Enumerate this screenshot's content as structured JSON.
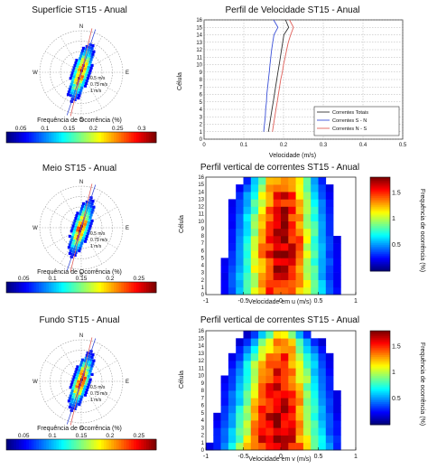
{
  "colors": {
    "ink": "#111111",
    "grid": "#9a9a9a",
    "total_line": "#333333",
    "sn_line": "#3b50d8",
    "ew_line": "#e0605a"
  },
  "compass": {
    "n": "N",
    "e": "E",
    "s": "S",
    "w": "W"
  },
  "roses": [
    {
      "title": "Superfície ST15 - Anual",
      "ring_labels": [
        "0.5 m/s",
        "0.75 m/s",
        "1 m/s"
      ],
      "xlabel": "Frequência de Ocorrência (%)",
      "colorbar": {
        "ticks": [
          "0.05",
          "0.1",
          "0.15",
          "0.2",
          "0.25",
          "0.3"
        ],
        "min": 0.02,
        "max": 0.33
      }
    },
    {
      "title": "Meio ST15 - Anual",
      "ring_labels": [
        "0.5 m/s",
        "0.75 m/s",
        "1 m/s"
      ],
      "xlabel": "Frequência de Ocorrência (%)",
      "colorbar": {
        "ticks": [
          "0.05",
          "0.1",
          "0.15",
          "0.2",
          "0.25"
        ],
        "min": 0.02,
        "max": 0.28
      }
    },
    {
      "title": "Fundo ST15 - Anual",
      "ring_labels": [
        "0.5 m/s",
        "0.75 m/s",
        "1 m/s"
      ],
      "xlabel": "Frequência de Ocorrência (%)",
      "colorbar": {
        "ticks": [
          "0.05",
          "0.1",
          "0.15",
          "0.2",
          "0.25"
        ],
        "min": 0.02,
        "max": 0.28
      }
    }
  ],
  "chart_data": [
    {
      "type": "line",
      "title": "Perfil de Velocidade ST15 - Anual",
      "xlabel": "Velocidade (m/s)",
      "ylabel": "Célula",
      "xlim": [
        0,
        0.5
      ],
      "ylim": [
        0,
        16
      ],
      "xticks": [
        "0",
        "0.1",
        "0.2",
        "0.3",
        "0.4",
        "0.5"
      ],
      "yticks": [
        "0",
        "1",
        "2",
        "3",
        "4",
        "5",
        "6",
        "7",
        "8",
        "9",
        "10",
        "11",
        "12",
        "13",
        "14",
        "15",
        "16"
      ],
      "grid": true,
      "legend_position": "bottom-right",
      "series": [
        {
          "name": "Correntes Totais",
          "y": [
            1,
            2,
            3,
            4,
            5,
            6,
            7,
            8,
            9,
            10,
            11,
            12,
            13,
            14,
            15,
            16
          ],
          "x": [
            0.162,
            0.165,
            0.168,
            0.171,
            0.174,
            0.177,
            0.18,
            0.183,
            0.186,
            0.189,
            0.192,
            0.195,
            0.198,
            0.201,
            0.213,
            0.205
          ]
        },
        {
          "name": "Correntes S - N",
          "y": [
            1,
            2,
            3,
            4,
            5,
            6,
            7,
            8,
            9,
            10,
            11,
            12,
            13,
            14,
            15,
            16
          ],
          "x": [
            0.15,
            0.152,
            0.154,
            0.155,
            0.157,
            0.158,
            0.16,
            0.162,
            0.164,
            0.166,
            0.168,
            0.17,
            0.173,
            0.176,
            0.186,
            0.175
          ]
        },
        {
          "name": "Correntes N - S",
          "y": [
            1,
            2,
            3,
            4,
            5,
            6,
            7,
            8,
            9,
            10,
            11,
            12,
            13,
            14,
            15,
            16
          ],
          "x": [
            0.172,
            0.175,
            0.178,
            0.181,
            0.184,
            0.187,
            0.19,
            0.193,
            0.197,
            0.2,
            0.204,
            0.208,
            0.212,
            0.218,
            0.225,
            0.215
          ]
        }
      ]
    },
    {
      "type": "heatmap",
      "title": "Perfil vertical de correntes ST15 - Anual",
      "xlabel": "Velocidade em u (m/s)",
      "ylabel": "Célula",
      "colorbar_label": "Frequência de ocorrência (%)",
      "xlim": [
        -1,
        1
      ],
      "ylim": [
        0,
        16
      ],
      "xticks": [
        "-1",
        "-0.5",
        "0",
        "0.5",
        "1"
      ],
      "yticks": [
        "0",
        "1",
        "2",
        "3",
        "4",
        "5",
        "6",
        "7",
        "8",
        "9",
        "10",
        "11",
        "12",
        "13",
        "14",
        "15",
        "16"
      ],
      "colorbar_ticks": [
        "0.5",
        "1",
        "1.5"
      ],
      "vmin": 0,
      "vmax": 1.8,
      "centers": [
        0.0,
        0.0,
        0.0,
        0.0,
        0.01,
        0.01,
        0.01,
        0.02,
        0.02,
        0.02,
        0.02,
        0.03,
        0.03,
        0.03,
        0.04,
        0.04
      ],
      "half_widths": [
        0.82,
        0.8,
        0.78,
        0.77,
        0.76,
        0.75,
        0.74,
        0.73,
        0.72,
        0.71,
        0.7,
        0.69,
        0.68,
        0.66,
        0.62,
        0.58
      ],
      "peaks": [
        1.55,
        1.6,
        1.62,
        1.65,
        1.68,
        1.7,
        1.7,
        1.72,
        1.7,
        1.68,
        1.66,
        1.64,
        1.6,
        1.56,
        1.5,
        1.45
      ]
    },
    {
      "type": "heatmap",
      "title": "Perfil vertical de correntes ST15 - Anual",
      "xlabel": "Velocidade em v (m/s)",
      "ylabel": "Célula",
      "colorbar_label": "Frequência de ocorrência (%)",
      "xlim": [
        -1,
        1
      ],
      "ylim": [
        0,
        16
      ],
      "xticks": [
        "-1",
        "-0.5",
        "0",
        "0.5",
        "1"
      ],
      "yticks": [
        "0",
        "1",
        "2",
        "3",
        "4",
        "5",
        "6",
        "7",
        "8",
        "9",
        "10",
        "11",
        "12",
        "13",
        "14",
        "15",
        "16"
      ],
      "colorbar_ticks": [
        "0.5",
        "1",
        "1.5"
      ],
      "vmin": 0,
      "vmax": 1.8,
      "centers": [
        -0.05,
        -0.05,
        -0.05,
        -0.04,
        -0.04,
        -0.04,
        -0.03,
        -0.03,
        -0.03,
        -0.02,
        -0.02,
        -0.02,
        -0.01,
        -0.01,
        0.0,
        0.0
      ],
      "half_widths": [
        0.9,
        0.88,
        0.86,
        0.84,
        0.82,
        0.8,
        0.79,
        0.78,
        0.76,
        0.74,
        0.72,
        0.7,
        0.67,
        0.62,
        0.55,
        0.45
      ],
      "peaks": [
        1.75,
        1.75,
        1.72,
        1.7,
        1.68,
        1.66,
        1.64,
        1.62,
        1.6,
        1.58,
        1.55,
        1.52,
        1.48,
        1.4,
        1.3,
        1.15
      ]
    }
  ]
}
